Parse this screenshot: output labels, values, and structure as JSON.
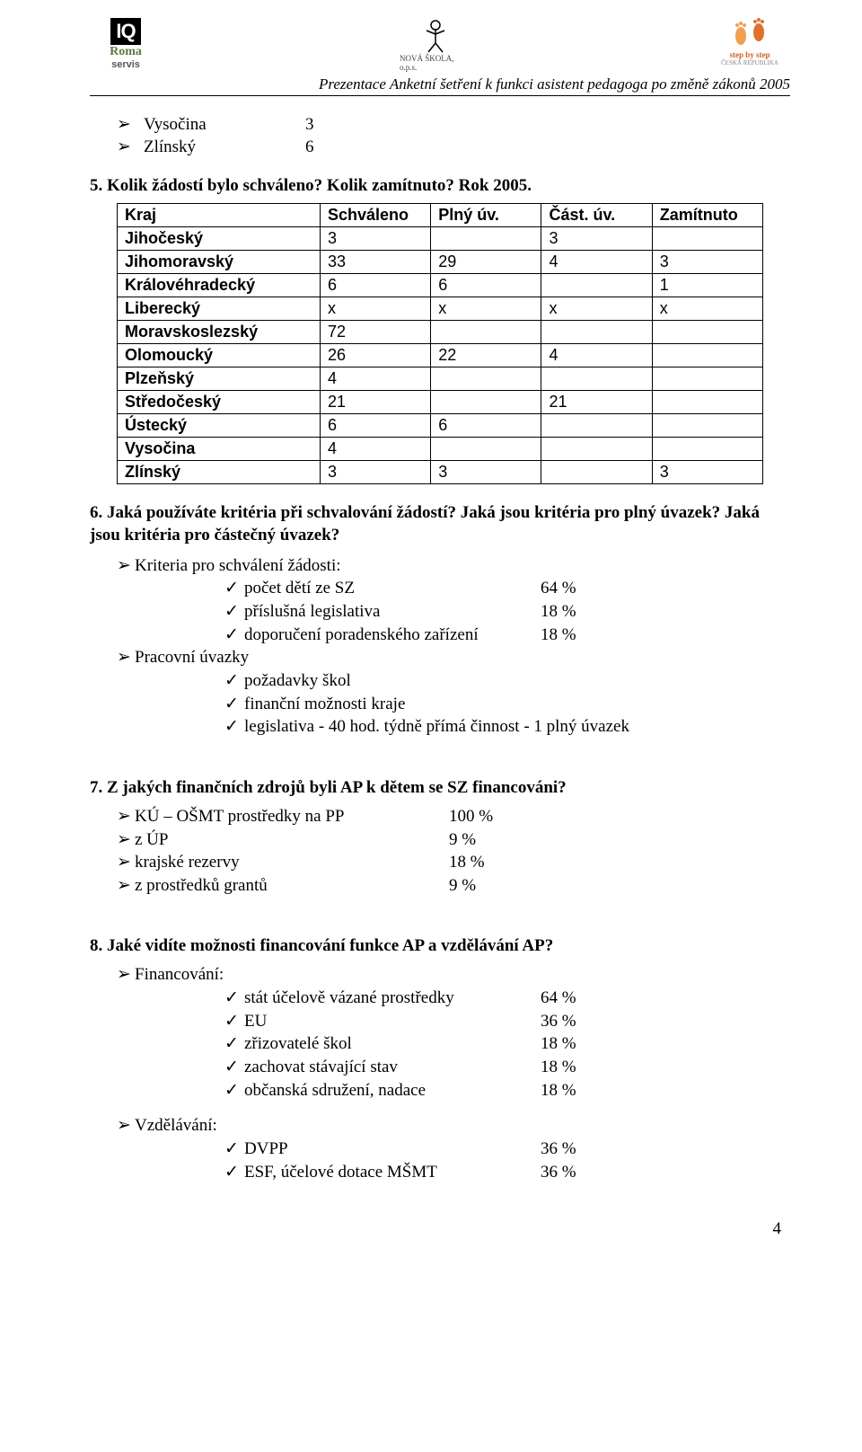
{
  "header": {
    "logo_left_top": "IQ",
    "logo_left_mid": "Roma",
    "logo_left_sub": "servis",
    "logo_center_sub": "NOVÁ ŠKOLA, o.p.s.",
    "logo_right_top": "step by step",
    "logo_right_sub": "ČESKÁ REPUBLIKA",
    "title": "Prezentace Anketní šetření k funkci asistent pedagoga po změně zákonů 2005"
  },
  "intro_regions": [
    {
      "name": "Vysočina",
      "val": "3"
    },
    {
      "name": "Zlínský",
      "val": "6"
    }
  ],
  "q5": {
    "heading": "5. Kolik žádostí bylo schváleno? Kolik zamítnuto? Rok 2005.",
    "columns": [
      "Kraj",
      "Schváleno",
      "Plný úv.",
      "Část. úv.",
      "Zamítnuto"
    ],
    "rows": [
      [
        "Jihočeský",
        "3",
        "",
        "3",
        ""
      ],
      [
        "Jihomoravský",
        "33",
        "29",
        "4",
        "3"
      ],
      [
        "Královéhradecký",
        "6",
        "6",
        "",
        "1"
      ],
      [
        "Liberecký",
        "x",
        "x",
        "x",
        "x"
      ],
      [
        "Moravskoslezský",
        "72",
        "",
        "",
        ""
      ],
      [
        "Olomoucký",
        "26",
        "22",
        "4",
        ""
      ],
      [
        "Plzeňský",
        "4",
        "",
        "",
        ""
      ],
      [
        "Středočeský",
        "21",
        "",
        "21",
        ""
      ],
      [
        "Ústecký",
        "6",
        "6",
        "",
        ""
      ],
      [
        "Vysočina",
        "4",
        "",
        "",
        ""
      ],
      [
        "Zlínský",
        "3",
        "3",
        "",
        "3"
      ]
    ]
  },
  "q6": {
    "heading": "6. Jaká používáte kritéria při schvalování žádostí? Jaká jsou kritéria pro plný úvazek? Jaká jsou kritéria pro částečný úvazek?",
    "kriteria_title": "Kriteria pro schválení žádosti:",
    "kriteria_items": [
      {
        "label": "počet dětí ze SZ",
        "val": "64 %"
      },
      {
        "label": "příslušná legislativa",
        "val": "18 %"
      },
      {
        "label": "doporučení poradenského zařízení",
        "val": "18 %"
      }
    ],
    "uvazky_title": "Pracovní úvazky",
    "uvazky_items": [
      {
        "label": "požadavky škol"
      },
      {
        "label": "finanční možnosti kraje"
      },
      {
        "label": "legislativa  - 40 hod. týdně přímá činnost -  1 plný úvazek"
      }
    ]
  },
  "q7": {
    "heading": "7. Z jakých finančních zdrojů byli AP k dětem se SZ financováni?",
    "items": [
      {
        "label": "KÚ – OŠMT prostředky na PP",
        "val": "100 %"
      },
      {
        "label": "z ÚP",
        "val": "9 %"
      },
      {
        "label": "krajské rezervy",
        "val": "18 %"
      },
      {
        "label": "z prostředků grantů",
        "val": "9 %"
      }
    ]
  },
  "q8": {
    "heading": "8. Jaké vidíte možnosti financování funkce AP a vzdělávání AP?",
    "fin_title": "Financování:",
    "fin_items": [
      {
        "label": "stát účelově vázané prostředky",
        "val": "64 %"
      },
      {
        "label": "EU",
        "val": "36 %"
      },
      {
        "label": "zřizovatelé škol",
        "val": "18 %"
      },
      {
        "label": "zachovat stávající stav",
        "val": "18 %"
      },
      {
        "label": "občanská sdružení, nadace",
        "val": "18 %"
      }
    ],
    "vzd_title": "Vzdělávání:",
    "vzd_items": [
      {
        "label": "DVPP",
        "val": "36 %"
      },
      {
        "label": "ESF, účelové dotace MŠMT",
        "val": "36 %"
      }
    ]
  },
  "page_number": "4"
}
